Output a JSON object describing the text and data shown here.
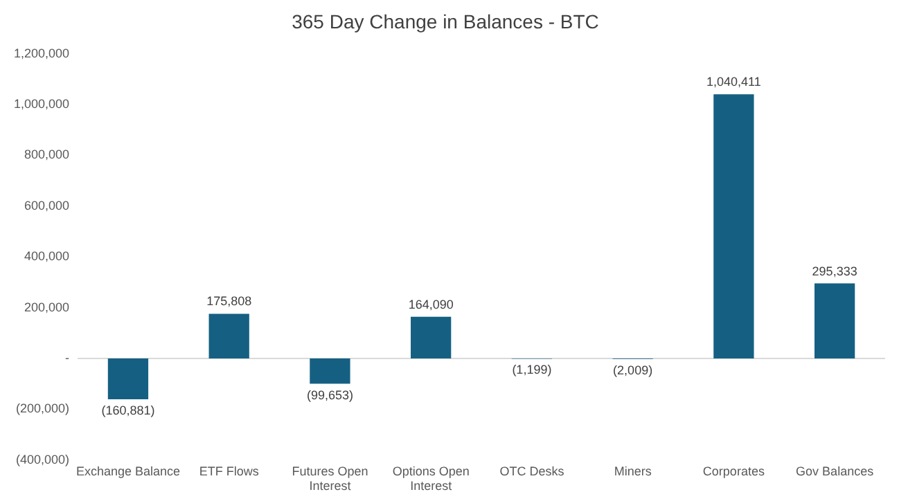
{
  "chart_data": {
    "type": "bar",
    "title": "365 Day Change in Balances - BTC",
    "categories": [
      "Exchange Balance",
      "ETF Flows",
      "Futures Open Interest",
      "Options Open Interest",
      "OTC Desks",
      "Miners",
      "Corporates",
      "Gov Balances"
    ],
    "values": [
      -160881,
      175808,
      -99653,
      164090,
      -1199,
      -2009,
      1040411,
      295333
    ],
    "value_labels": [
      "(160,881)",
      "175,808",
      "(99,653)",
      "164,090",
      "(1,199)",
      "(2,009)",
      "1,040,411",
      "295,333"
    ],
    "color": "#156082",
    "ylim": [
      -400000,
      1200000
    ],
    "yticks": [
      {
        "value": -400000,
        "label": "(400,000)"
      },
      {
        "value": -200000,
        "label": "(200,000)"
      },
      {
        "value": 0,
        "label": "-"
      },
      {
        "value": 200000,
        "label": "200,000"
      },
      {
        "value": 400000,
        "label": "400,000"
      },
      {
        "value": 600000,
        "label": "600,000"
      },
      {
        "value": 800000,
        "label": "800,000"
      },
      {
        "value": 1000000,
        "label": "1,000,000"
      },
      {
        "value": 1200000,
        "label": "1,200,000"
      }
    ],
    "ref_lines": [
      {
        "axis": "y",
        "value": 0,
        "color": "#d9d9d9"
      }
    ],
    "grid": false,
    "legend": false
  }
}
